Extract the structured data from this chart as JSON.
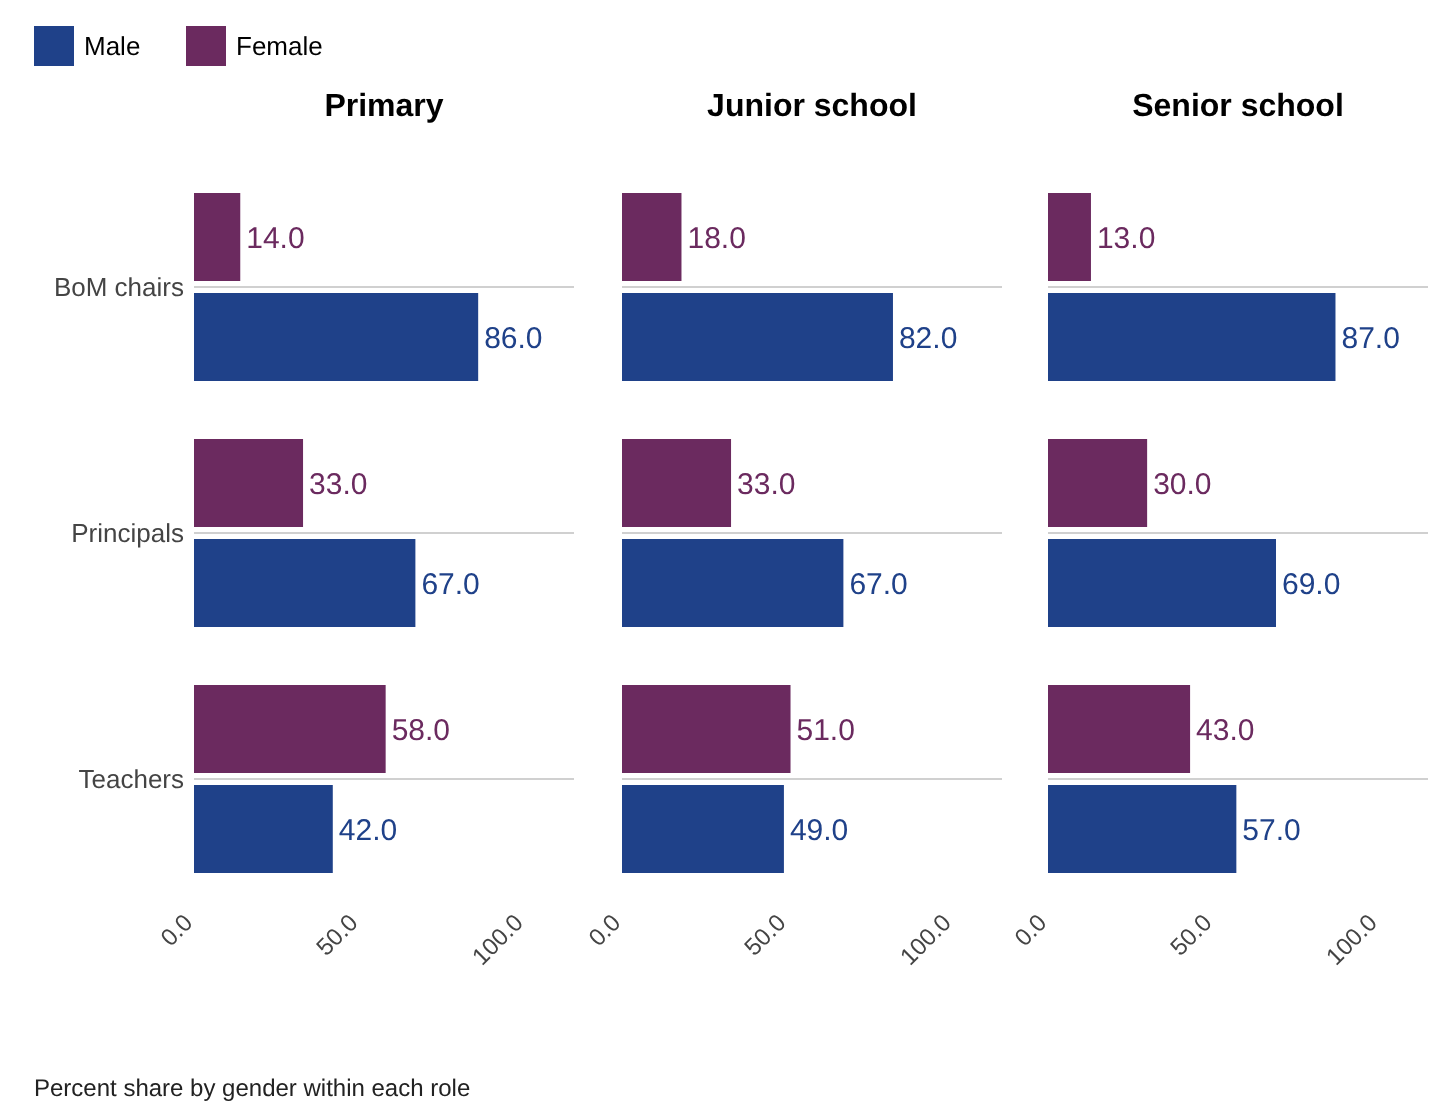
{
  "chart_data": [
    {
      "type": "bar",
      "orientation": "horizontal",
      "title": "Primary",
      "categories": [
        "BoM chairs",
        "Principals",
        "Teachers"
      ],
      "series": [
        {
          "name": "Male",
          "color": "#1f4189",
          "values": [
            86,
            67,
            42
          ],
          "value_labels": [
            "86.0",
            "67.0",
            "42.0"
          ]
        },
        {
          "name": "Female",
          "color": "#6b2a5f",
          "values": [
            14,
            33,
            58
          ],
          "value_labels": [
            "14.0",
            "33.0",
            "58.0"
          ]
        }
      ],
      "xlim": [
        0,
        115
      ],
      "xticks": [
        {
          "value": 0,
          "label": "0.0"
        },
        {
          "value": 50,
          "label": "50.0"
        },
        {
          "value": 100,
          "label": "100.0"
        }
      ],
      "grid": "y",
      "legend": "top left",
      "annotations": [
        "Percent share by gender within each role"
      ]
    },
    {
      "type": "bar",
      "orientation": "horizontal",
      "title": "Junior school",
      "categories": [
        null,
        null,
        null
      ],
      "series": [
        {
          "color": "#1f4189",
          "values": [
            82,
            67,
            49
          ],
          "value_labels": [
            "82.0",
            "67.0",
            "49.0"
          ]
        },
        {
          "color": "#6b2a5f",
          "values": [
            18,
            33,
            51
          ],
          "value_labels": [
            "18.0",
            "33.0",
            "51.0"
          ]
        }
      ],
      "xlim": [
        0,
        115
      ],
      "xticks": [
        {
          "value": 0,
          "label": "0.0"
        },
        {
          "value": 50,
          "label": "50.0"
        },
        {
          "value": 100,
          "label": "100.0"
        }
      ],
      "grid": "y",
      "tick_labels": "x"
    },
    {
      "type": "bar",
      "orientation": "horizontal",
      "title": "Senior school",
      "categories": [
        null,
        null,
        null
      ],
      "series": [
        {
          "color": "#1f4189",
          "values": [
            87,
            69,
            57
          ],
          "value_labels": [
            "87.0",
            "69.0",
            "57.0"
          ]
        },
        {
          "color": "#6b2a5f",
          "values": [
            13,
            30,
            43
          ],
          "value_labels": [
            "13.0",
            "30.0",
            "43.0"
          ]
        }
      ],
      "xlim": [
        0,
        115
      ],
      "xticks": [
        {
          "value": 0,
          "label": "0.0"
        },
        {
          "value": 50,
          "label": "50.0"
        },
        {
          "value": 100,
          "label": "100.0"
        }
      ],
      "grid": "y",
      "tick_labels": "x"
    }
  ]
}
